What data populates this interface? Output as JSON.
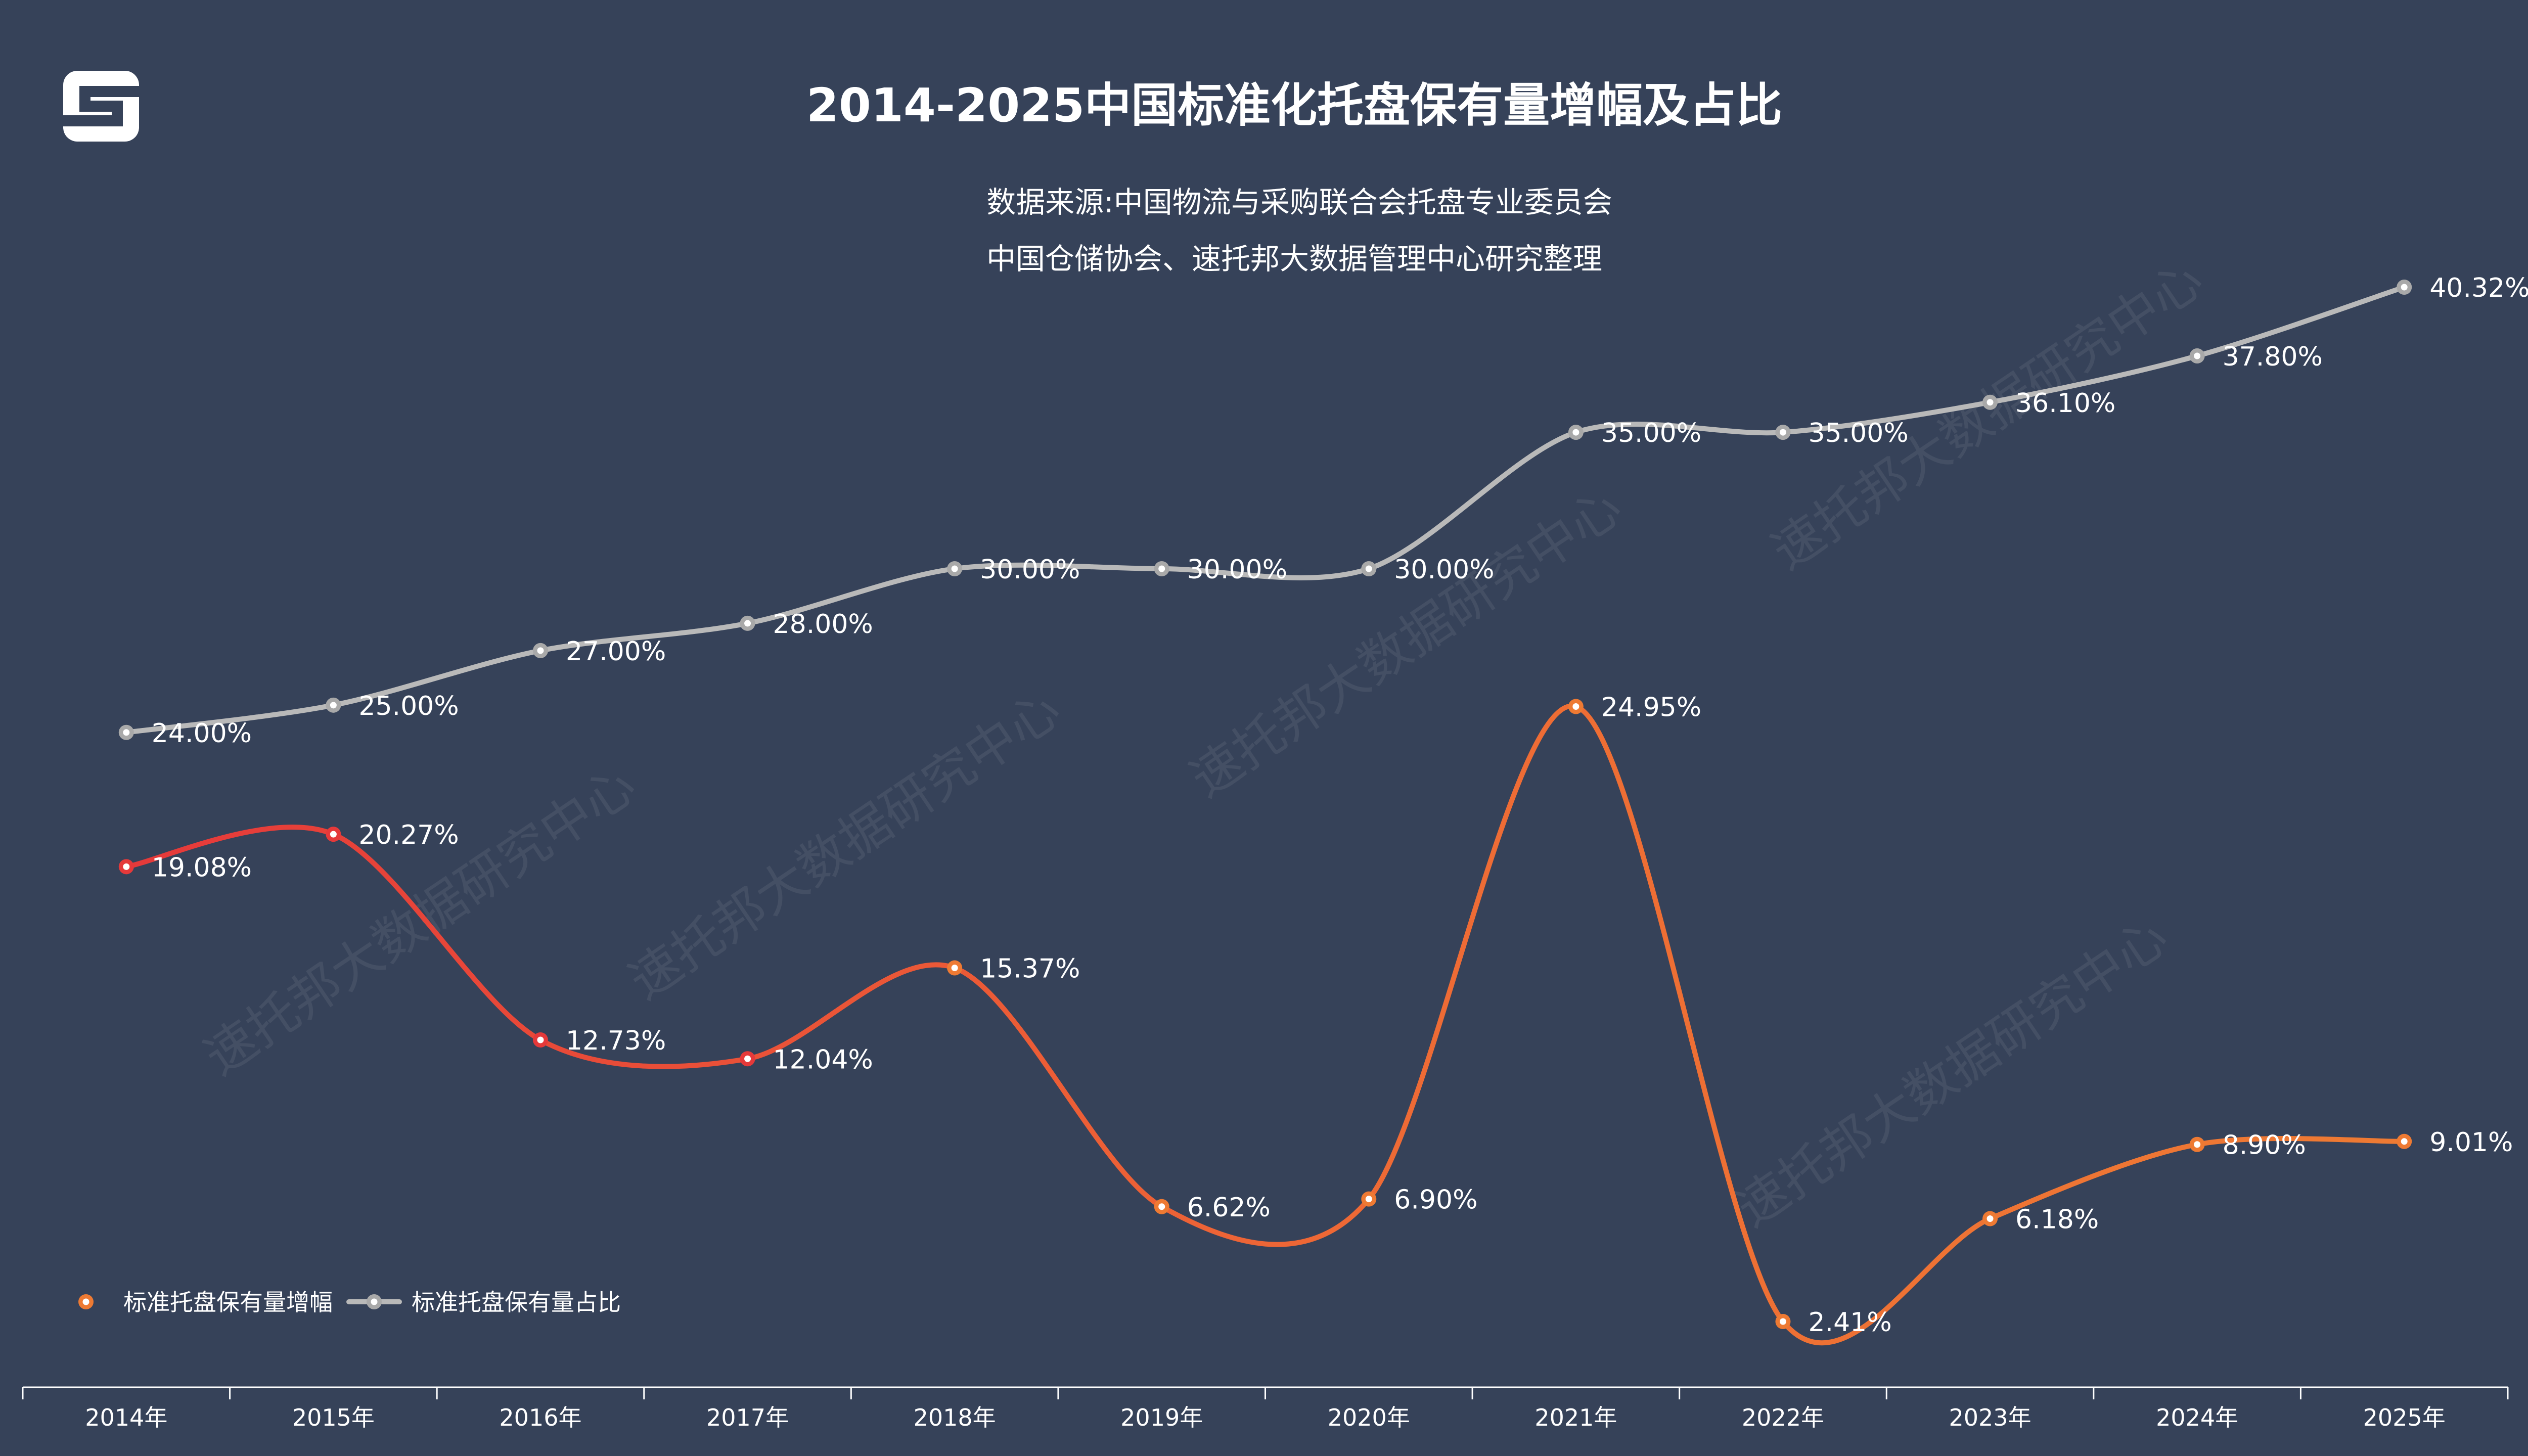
{
  "header": {
    "title": "2014-2025中国标准化托盘保有量增幅及占比",
    "source_line1": "数据来源:中国物流与采购联合会托盘专业委员会",
    "source_line2": "中国仓储协会、速托邦大数据管理中心研究整理"
  },
  "watermark": {
    "text": "速托邦大数据研究中心"
  },
  "colors": {
    "background": "#364259",
    "growth_red": "#E5393A",
    "growth_orange": "#EE7A33",
    "share_gray": "#B9B9B9",
    "text": "#FFFFFF"
  },
  "chart_data": {
    "type": "line",
    "title": "2014-2025中国标准化托盘保有量增幅及占比",
    "categories": [
      "2014年",
      "2015年",
      "2016年",
      "2017年",
      "2018年",
      "2019年",
      "2020年",
      "2021年",
      "2022年",
      "2023年",
      "2024年",
      "2025年"
    ],
    "ylim": [
      0,
      45
    ],
    "unit": "%",
    "legend_position": "bottom-left",
    "series": [
      {
        "name": "标准托盘保有量增幅",
        "values": [
          19.08,
          20.27,
          12.73,
          12.04,
          15.37,
          6.62,
          6.9,
          24.95,
          2.41,
          6.18,
          8.9,
          9.01
        ],
        "labels": [
          "19.08%",
          "20.27%",
          "12.73%",
          "12.04%",
          "15.37%",
          "6.62%",
          "6.90%",
          "24.95%",
          "2.41%",
          "6.18%",
          "8.90%",
          "9.01%"
        ]
      },
      {
        "name": "标准托盘保有量占比",
        "values": [
          24.0,
          25.0,
          27.0,
          28.0,
          30.0,
          30.0,
          30.0,
          35.0,
          35.0,
          36.1,
          37.8,
          40.32
        ],
        "labels": [
          "24.00%",
          "25.00%",
          "27.00%",
          "28.00%",
          "30.00%",
          "30.00%",
          "30.00%",
          "35.00%",
          "35.00%",
          "36.10%",
          "37.80%",
          "40.32%"
        ]
      }
    ]
  }
}
